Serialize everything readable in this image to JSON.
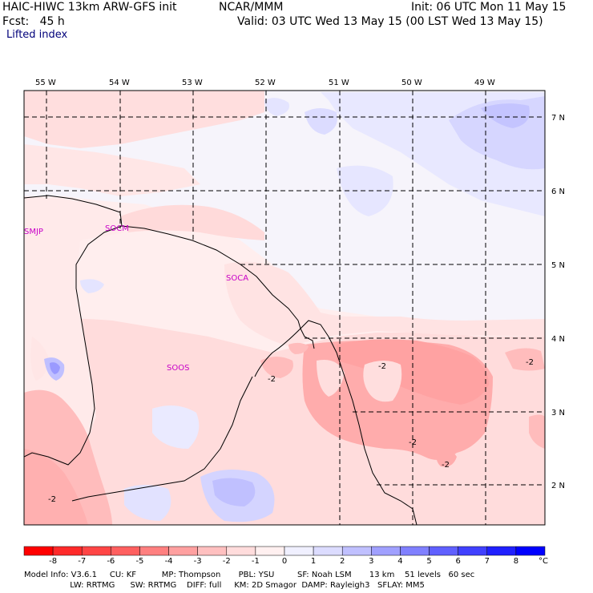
{
  "header": {
    "model_line": "HAIC-HIWC 13km ARW-GFS init",
    "org": "NCAR/MMM",
    "init": "Init: 06 UTC Mon 11 May 15",
    "fcst": "Fcst:   45 h",
    "valid": "Valid: 03 UTC Wed 13 May 15 (00 LST Wed 13 May 15)",
    "field": "Lifted index"
  },
  "map": {
    "lon_labels": [
      "55 W",
      "54 W",
      "53 W",
      "52 W",
      "51 W",
      "50 W",
      "49 W"
    ],
    "lat_labels": [
      "7 N",
      "6 N",
      "5 N",
      "4 N",
      "3 N",
      "2 N"
    ],
    "stations": [
      "SMJP",
      "SOCM",
      "SOCA",
      "SOOS"
    ],
    "contour_labels": [
      "-2",
      "-2",
      "-2",
      "-2",
      "-2",
      "-2"
    ]
  },
  "colorbar": {
    "labels": [
      "-8",
      "-7",
      "-6",
      "-5",
      "-4",
      "-3",
      "-2",
      "-1",
      "0",
      "1",
      "2",
      "3",
      "4",
      "5",
      "6",
      "7",
      "8"
    ],
    "unit": "°C",
    "colors": [
      "#ff0000",
      "#ff2a2a",
      "#ff4545",
      "#ff6060",
      "#ff8080",
      "#ffa0a0",
      "#ffc0c0",
      "#ffdcdc",
      "#fff0f0",
      "#f0f0ff",
      "#dcdcff",
      "#c0c0ff",
      "#a0a0ff",
      "#8080ff",
      "#6060ff",
      "#4040ff",
      "#2020ff",
      "#0000ff"
    ]
  },
  "footer": {
    "line1": "Model Info: V3.6.1     CU: KF          MP: Thompson       PBL: YSU         SF: Noah LSM       13 km    51 levels   60 sec",
    "line2": "                  LW: RRTMG      SW: RRTMG    DIFF: full     KM: 2D Smagor  DAMP: Rayleigh3   SFLAY: MM5"
  }
}
